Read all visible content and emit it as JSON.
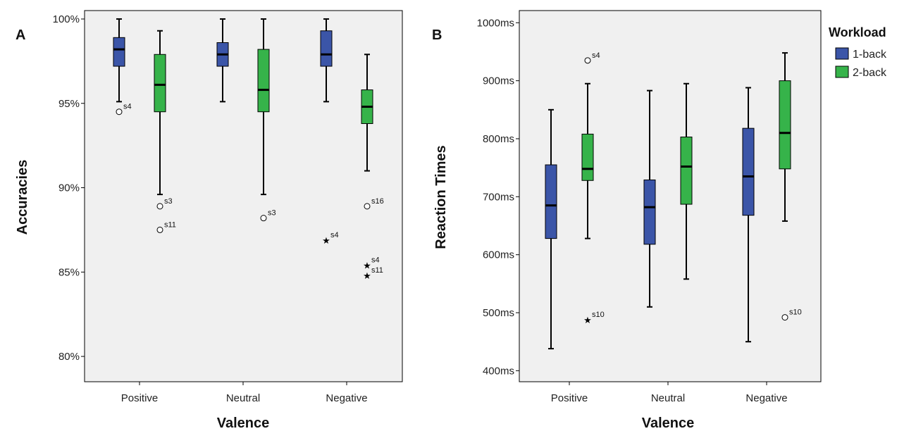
{
  "legend": {
    "title": "Workload",
    "items": [
      {
        "label": "1-back",
        "color": "#3b55a8"
      },
      {
        "label": "2-back",
        "color": "#36b34a"
      }
    ]
  },
  "chart_data": [
    {
      "panel": "A",
      "type": "box",
      "xlabel": "Valence",
      "ylabel": "Accuracies",
      "categories": [
        "Positive",
        "Neutral",
        "Negative"
      ],
      "yticks": [
        {
          "value": 80,
          "label": "80%"
        },
        {
          "value": 85,
          "label": "85%"
        },
        {
          "value": 90,
          "label": "90%"
        },
        {
          "value": 95,
          "label": "95%"
        },
        {
          "value": 100,
          "label": "100%"
        }
      ],
      "ylim": [
        78.5,
        100.5
      ],
      "series": [
        {
          "name": "1-back",
          "boxes": [
            {
              "min": 95.1,
              "q1": 97.2,
              "median": 98.2,
              "q3": 98.9,
              "max": 100,
              "outliers": [
                {
                  "value": 94.5,
                  "label": "s4",
                  "marker": "circle"
                }
              ]
            },
            {
              "min": 95.1,
              "q1": 97.2,
              "median": 97.9,
              "q3": 98.6,
              "max": 100,
              "outliers": []
            },
            {
              "min": 95.1,
              "q1": 97.2,
              "median": 97.9,
              "q3": 99.3,
              "max": 100,
              "outliers": [
                {
                  "value": 86.9,
                  "label": "s4",
                  "marker": "star"
                }
              ]
            }
          ]
        },
        {
          "name": "2-back",
          "boxes": [
            {
              "min": 89.6,
              "q1": 94.5,
              "median": 96.1,
              "q3": 97.9,
              "max": 99.3,
              "outliers": [
                {
                  "value": 88.9,
                  "label": "s3",
                  "marker": "circle"
                },
                {
                  "value": 87.5,
                  "label": "s11",
                  "marker": "circle"
                }
              ]
            },
            {
              "min": 89.6,
              "q1": 94.5,
              "median": 95.8,
              "q3": 98.2,
              "max": 100,
              "outliers": [
                {
                  "value": 88.2,
                  "label": "s3",
                  "marker": "circle"
                }
              ]
            },
            {
              "min": 91.0,
              "q1": 93.8,
              "median": 94.8,
              "q3": 95.8,
              "max": 97.9,
              "outliers": [
                {
                  "value": 88.9,
                  "label": "s16",
                  "marker": "circle"
                },
                {
                  "value": 85.4,
                  "label": "s4",
                  "marker": "star"
                },
                {
                  "value": 84.8,
                  "label": "s11",
                  "marker": "star"
                }
              ]
            }
          ]
        }
      ]
    },
    {
      "panel": "B",
      "type": "box",
      "xlabel": "Valence",
      "ylabel": "Reaction Times",
      "categories": [
        "Positive",
        "Neutral",
        "Negative"
      ],
      "yticks": [
        {
          "value": 400,
          "label": "400ms"
        },
        {
          "value": 500,
          "label": "500ms"
        },
        {
          "value": 600,
          "label": "600ms"
        },
        {
          "value": 700,
          "label": "700ms"
        },
        {
          "value": 800,
          "label": "800ms"
        },
        {
          "value": 900,
          "label": "900ms"
        },
        {
          "value": 1000,
          "label": "1000ms"
        }
      ],
      "ylim": [
        381,
        1021
      ],
      "series": [
        {
          "name": "1-back",
          "boxes": [
            {
              "min": 438,
              "q1": 628,
              "median": 685,
              "q3": 755,
              "max": 850,
              "outliers": []
            },
            {
              "min": 510,
              "q1": 618,
              "median": 682,
              "q3": 729,
              "max": 883,
              "outliers": []
            },
            {
              "min": 450,
              "q1": 668,
              "median": 735,
              "q3": 818,
              "max": 888,
              "outliers": []
            }
          ]
        },
        {
          "name": "2-back",
          "boxes": [
            {
              "min": 628,
              "q1": 728,
              "median": 748,
              "q3": 808,
              "max": 895,
              "outliers": [
                {
                  "value": 935,
                  "label": "s4",
                  "marker": "circle"
                },
                {
                  "value": 488,
                  "label": "s10",
                  "marker": "star"
                }
              ]
            },
            {
              "min": 558,
              "q1": 687,
              "median": 752,
              "q3": 803,
              "max": 895,
              "outliers": []
            },
            {
              "min": 658,
              "q1": 748,
              "median": 810,
              "q3": 900,
              "max": 948,
              "outliers": [
                {
                  "value": 492,
                  "label": "s10",
                  "marker": "circle"
                }
              ]
            }
          ]
        }
      ]
    }
  ]
}
